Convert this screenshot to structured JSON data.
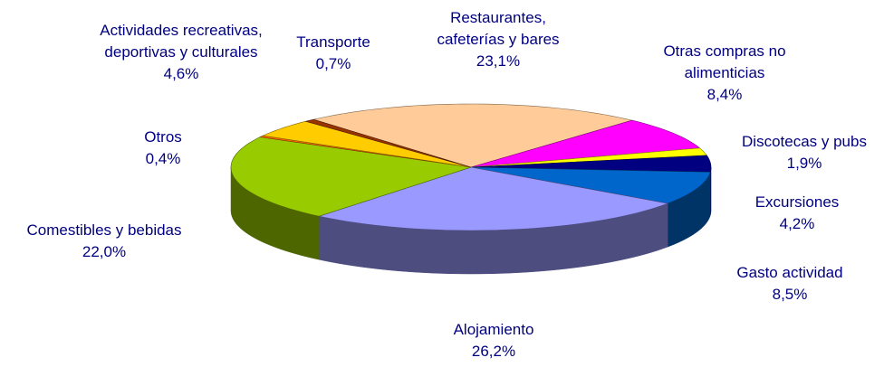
{
  "chart_data": {
    "type": "pie3d",
    "categories": [
      "Restaurantes, cafeterías y bares",
      "Otras compras no alimenticias",
      "Discotecas y pubs",
      "Excursiones",
      "Gasto actividad",
      "Alojamiento",
      "Comestibles y bebidas",
      "Otros",
      "Actividades recreativas, deportivas y culturales",
      "Transporte"
    ],
    "values": [
      23.1,
      8.4,
      1.9,
      4.2,
      8.5,
      26.2,
      22.0,
      0.4,
      4.6,
      0.7
    ],
    "value_labels": [
      "23,1%",
      "8,4%",
      "1,9%",
      "4,2%",
      "8,5%",
      "26,2%",
      "22,0%",
      "0,4%",
      "4,6%",
      "0,7%"
    ],
    "colors": [
      "#ffcc99",
      "#ff00ff",
      "#ffff00",
      "#000080",
      "#0066cc",
      "#9999ff",
      "#99cc00",
      "#ff6600",
      "#ffcc00",
      "#993300"
    ]
  }
}
